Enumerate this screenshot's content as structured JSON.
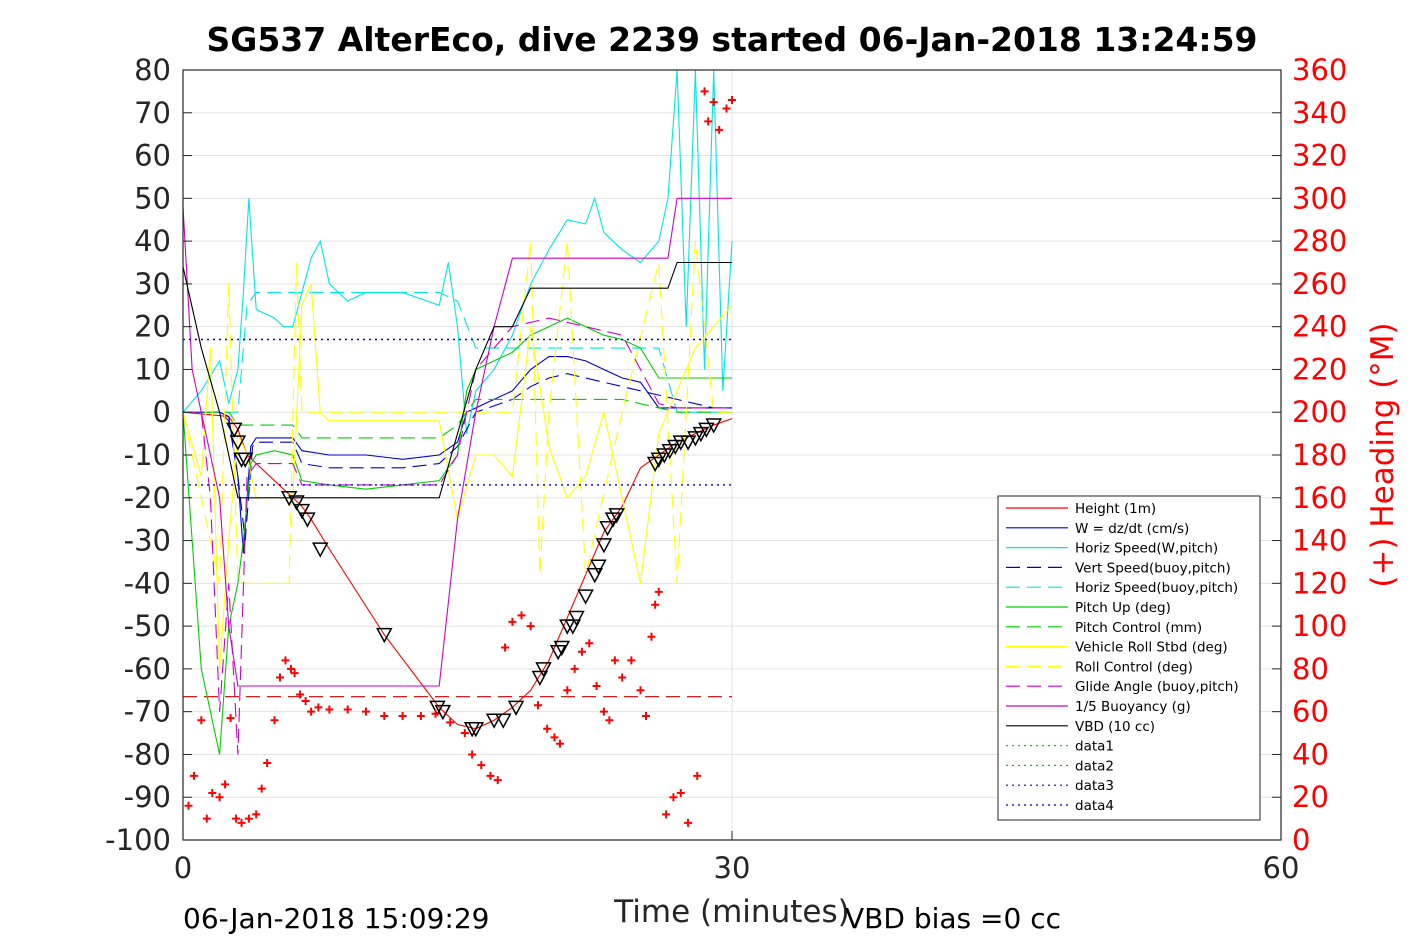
{
  "chart_data": {
    "type": "line",
    "title": "SG537 AlterEco, dive 2239 started 06-Jan-2018 13:24:59",
    "xlabel": "Time (minutes)",
    "ylabel": "",
    "y2label": "(+) Heading (°M)",
    "xlim": [
      0,
      60
    ],
    "ylim": [
      -100,
      80
    ],
    "y2lim": [
      0,
      360
    ],
    "xticks": [
      "0",
      "30",
      "60"
    ],
    "yticks": [
      "80",
      "70",
      "60",
      "50",
      "40",
      "30",
      "20",
      "10",
      "0",
      "-10",
      "-20",
      "-30",
      "-40",
      "-50",
      "-60",
      "-70",
      "-80",
      "-90",
      "-100"
    ],
    "y2ticks": [
      "360",
      "340",
      "320",
      "300",
      "280",
      "260",
      "240",
      "220",
      "200",
      "180",
      "160",
      "140",
      "120",
      "100",
      "80",
      "60",
      "40",
      "20",
      "0"
    ],
    "grid": true,
    "legend_position": "bottom-right",
    "footer_left": "06-Jan-2018 15:09:29",
    "footer_right": "VBD bias =0 cc",
    "series": [
      {
        "name": "Height (1m)",
        "color": "#ff0000",
        "style": "solid",
        "x": [
          0,
          2.5,
          3,
          3.5,
          4,
          6,
          6.5,
          7,
          8,
          11,
          14,
          15,
          16,
          17,
          18,
          19,
          20,
          21,
          22,
          23,
          24,
          25,
          26,
          27,
          28,
          29,
          30
        ],
        "y": [
          0,
          -1,
          -4,
          -10,
          -12,
          -20,
          -22,
          -25,
          -32,
          -52,
          -69,
          -73,
          -74,
          -72,
          -69,
          -65,
          -58,
          -48,
          -38,
          -28,
          -22,
          -13,
          -10,
          -7,
          -5,
          -3,
          -1.5
        ]
      },
      {
        "name": "W = dz/dt (cm/s)",
        "color": "#0000cc",
        "style": "solid",
        "x": [
          0,
          2,
          2.5,
          3,
          3.3,
          3.7,
          4,
          5,
          6,
          6.5,
          8,
          10,
          12,
          14,
          15,
          15.5,
          16.5,
          18,
          19,
          20,
          21,
          22,
          23,
          24,
          25,
          26,
          27,
          28,
          29,
          30
        ],
        "y": [
          0,
          0,
          -1,
          -15,
          -33,
          -8,
          -6,
          -6,
          -6,
          -9,
          -10,
          -10,
          -11,
          -10,
          -7,
          0,
          2,
          5,
          10,
          13,
          13,
          12,
          10,
          8,
          7,
          1,
          1,
          1,
          1,
          1
        ]
      },
      {
        "name": "Horiz Speed(W,pitch)",
        "color": "#00e5e5",
        "style": "solid",
        "x": [
          0,
          1,
          2,
          2.5,
          3,
          3.3,
          3.6,
          4,
          5,
          5.5,
          6,
          7,
          7.5,
          8,
          9,
          10,
          12,
          14,
          14.5,
          15,
          15.5,
          16,
          17,
          18,
          19,
          20,
          21,
          22,
          22.5,
          23,
          24,
          25,
          26,
          26.5,
          27,
          27.5,
          28,
          28.5,
          29,
          29.5,
          30
        ],
        "y": [
          0,
          5,
          12,
          2,
          10,
          28,
          50,
          24,
          22,
          20,
          20,
          36,
          40,
          30,
          26,
          28,
          28,
          25,
          35,
          20,
          -5,
          5,
          10,
          18,
          30,
          38,
          45,
          44,
          50,
          42,
          38,
          35,
          40,
          50,
          80,
          20,
          80,
          10,
          80,
          5,
          40
        ]
      },
      {
        "name": "Vert Speed(buoy,pitch)",
        "color": "#0000cc",
        "style": "dashed",
        "x": [
          0,
          2,
          2.5,
          3,
          3.4,
          3.8,
          4,
          5,
          6,
          6.5,
          8,
          10,
          12,
          14,
          15,
          16,
          18,
          19,
          20,
          21,
          22,
          23,
          24,
          25,
          26,
          27,
          28,
          29,
          30
        ],
        "y": [
          0,
          0,
          -2,
          -15,
          -30,
          -8,
          -7,
          -7,
          -7,
          -12,
          -13,
          -13,
          -13,
          -12,
          -8,
          0,
          3,
          6,
          8,
          9,
          8,
          7,
          6,
          5,
          4,
          3,
          2,
          1,
          1
        ]
      },
      {
        "name": "Horiz Speed(buoy,pitch)",
        "color": "#00e5e5",
        "style": "dashed",
        "x": [
          0,
          3,
          3.5,
          4,
          6,
          14,
          15,
          16,
          20,
          26,
          27,
          30
        ],
        "y": [
          0,
          0,
          25,
          28,
          28,
          28,
          26,
          15,
          15,
          15,
          0,
          0
        ]
      },
      {
        "name": "Pitch Up (deg)",
        "color": "#00cc00",
        "style": "solid",
        "x": [
          0,
          1,
          2,
          2.5,
          3,
          3.3,
          3.7,
          4,
          5,
          6,
          6.5,
          8,
          10,
          12,
          14,
          15,
          15.5,
          16,
          17,
          18,
          19,
          20,
          21,
          22,
          23,
          24,
          25,
          26,
          27,
          28,
          29,
          30
        ],
        "y": [
          0,
          -60,
          -80,
          -50,
          -40,
          -30,
          -12,
          -10,
          -9,
          -10,
          -16,
          -17,
          -18,
          -17,
          -16,
          -10,
          5,
          10,
          12,
          14,
          18,
          20,
          22,
          20,
          18,
          17,
          15,
          8,
          8,
          8,
          8,
          8
        ]
      },
      {
        "name": "Pitch Control (mm)",
        "color": "#00cc00",
        "style": "dashed",
        "x": [
          0,
          2.5,
          3,
          6,
          6.5,
          14,
          15,
          16,
          18,
          22,
          24,
          26,
          27,
          30
        ],
        "y": [
          0,
          0,
          -3,
          -3,
          -6,
          -6,
          -3,
          3,
          3,
          3,
          3,
          1,
          0,
          0
        ]
      },
      {
        "name": "Vehicle Roll Stbd (deg)",
        "color": "#ffff00",
        "style": "solid",
        "x": [
          0,
          1,
          1.5,
          2,
          2.5,
          3,
          3.5,
          4,
          5,
          6,
          6.5,
          7,
          7.5,
          8,
          10,
          12,
          14,
          15,
          16,
          17,
          18,
          19,
          20,
          21,
          22,
          23,
          24,
          25,
          26,
          27,
          28,
          29,
          30
        ],
        "y": [
          0,
          -15,
          15,
          -60,
          -30,
          -5,
          -10,
          -20,
          -20,
          -20,
          25,
          30,
          0,
          -2,
          -2,
          -2,
          -2,
          -25,
          -10,
          -10,
          -15,
          20,
          -8,
          -20,
          -15,
          0,
          -20,
          -40,
          -5,
          5,
          15,
          20,
          25
        ]
      },
      {
        "name": "Roll Control (deg)",
        "color": "#ffff00",
        "style": "dashed",
        "x": [
          0,
          2,
          2.5,
          3,
          4,
          5,
          5.8,
          6.2,
          6.5,
          14,
          16,
          17,
          18,
          19,
          19.5,
          20,
          21,
          22,
          24,
          26,
          27,
          28,
          29,
          30
        ],
        "y": [
          0,
          -40,
          30,
          -40,
          -40,
          -40,
          -40,
          35,
          0,
          0,
          0,
          0,
          0,
          40,
          -38,
          0,
          40,
          -38,
          0,
          35,
          -40,
          40,
          0,
          0
        ]
      },
      {
        "name": "Glide Angle (buoy,pitch)",
        "color": "#cc00cc",
        "style": "dashed",
        "x": [
          0,
          1,
          1.5,
          2,
          2.5,
          3,
          3.5,
          4,
          6,
          6.5,
          14,
          15,
          16,
          18,
          20,
          22,
          24,
          26,
          27,
          30
        ],
        "y": [
          0,
          0,
          -20,
          -70,
          -40,
          -80,
          -15,
          -12,
          -12,
          -17,
          -17,
          -10,
          10,
          20,
          22,
          20,
          18,
          2,
          1,
          1
        ]
      },
      {
        "name": "1/5 Buoyancy (g)",
        "color": "#cc00cc",
        "style": "solid",
        "x": [
          0,
          0.5,
          1,
          2,
          2.5,
          3,
          3.5,
          14,
          15,
          16,
          17,
          18,
          19,
          26.5,
          27,
          30
        ],
        "y": [
          48,
          10,
          0,
          -20,
          -50,
          -64,
          -64,
          -64,
          -25,
          0,
          20,
          36,
          36,
          36,
          50,
          50
        ]
      },
      {
        "name": "VBD (10 cc)",
        "color": "#000000",
        "style": "solid",
        "x": [
          0,
          1,
          2,
          2.5,
          3,
          14,
          15,
          16,
          17,
          18,
          19,
          26.5,
          27,
          30
        ],
        "y": [
          34,
          15,
          0,
          -10,
          -20,
          -20,
          -5,
          10,
          20,
          20,
          29,
          29,
          35,
          35
        ]
      },
      {
        "name": "data1",
        "color": "#00cc00",
        "style": "dotted",
        "x": [],
        "y": []
      },
      {
        "name": "data2",
        "color": "#00cc00",
        "style": "dotted",
        "x": [],
        "y": []
      },
      {
        "name": "data3",
        "color": "#0000cc",
        "style": "dotted",
        "x": [
          0,
          30
        ],
        "y": [
          17,
          17
        ]
      },
      {
        "name": "data4",
        "color": "#0000cc",
        "style": "dotted",
        "x": [
          0,
          30
        ],
        "y": [
          -17,
          -17
        ]
      }
    ],
    "reference_line": {
      "color": "#cc0000",
      "style": "dashed",
      "x": [
        0,
        30
      ],
      "y": [
        -66.5,
        -66.5
      ]
    },
    "sample_markers": {
      "color": "#000000",
      "shape": "triangle",
      "x": [
        2.8,
        3.0,
        3.2,
        3.4,
        5.8,
        6.2,
        6.5,
        6.8,
        7.5,
        11.0,
        13.9,
        14.2,
        15.8,
        16.0,
        17.0,
        17.5,
        18.2,
        19.5,
        19.7,
        20.5,
        20.7,
        21.0,
        21.3,
        21.5,
        22.0,
        22.5,
        22.7,
        23.0,
        23.2,
        23.5,
        23.7,
        25.8,
        26.0,
        26.3,
        26.6,
        26.9,
        27.2,
        27.6,
        28.0,
        28.3,
        28.6,
        29.0
      ],
      "y": [
        -4,
        -7,
        -11,
        -11,
        -20,
        -21,
        -23,
        -25,
        -32,
        -52,
        -69,
        -70,
        -74,
        -74,
        -72,
        -72,
        -69,
        -62,
        -60,
        -56,
        -55,
        -50,
        -50,
        -48,
        -43,
        -38,
        -36,
        -31,
        -27,
        -25,
        -24,
        -12,
        -11,
        -10,
        -9,
        -8,
        -7,
        -7,
        -6,
        -5,
        -4,
        -3
      ]
    },
    "heading_points": {
      "axis": "right",
      "color": "#ff0000",
      "marker": "+",
      "x": [
        0.3,
        0.6,
        1.0,
        1.3,
        1.6,
        2.0,
        2.3,
        2.6,
        2.9,
        3.2,
        3.6,
        4.0,
        4.3,
        4.6,
        5.0,
        5.3,
        5.6,
        5.9,
        6.1,
        6.4,
        6.7,
        7.0,
        7.4,
        8.0,
        9.0,
        10.0,
        11.0,
        12.0,
        13.0,
        13.8,
        14.6,
        15.4,
        15.8,
        16.3,
        16.8,
        17.2,
        17.6,
        18.0,
        18.5,
        19.0,
        19.4,
        19.9,
        20.3,
        20.6,
        21.0,
        21.4,
        21.8,
        22.2,
        22.6,
        23.0,
        23.3,
        23.6,
        24.0,
        24.5,
        25.0,
        25.3,
        25.6,
        25.8,
        26.0,
        26.4,
        26.8,
        27.2,
        27.6,
        28.1,
        28.5,
        28.7,
        29.0,
        29.3,
        29.7,
        30.0
      ],
      "y": [
        16,
        30,
        56,
        10,
        22,
        20,
        26,
        57,
        10,
        8,
        10,
        12,
        24,
        36,
        56,
        76,
        84,
        80,
        78,
        68,
        65,
        60,
        62,
        61,
        61,
        60,
        58,
        58,
        58,
        59,
        55,
        50,
        40,
        35,
        30,
        28,
        90,
        102,
        105,
        100,
        63,
        52,
        48,
        45,
        70,
        80,
        88,
        92,
        72,
        60,
        56,
        84,
        76,
        84,
        70,
        58,
        95,
        110,
        116,
        12,
        20,
        22,
        8,
        30,
        350,
        336,
        345,
        332,
        342,
        346
      ]
    }
  }
}
